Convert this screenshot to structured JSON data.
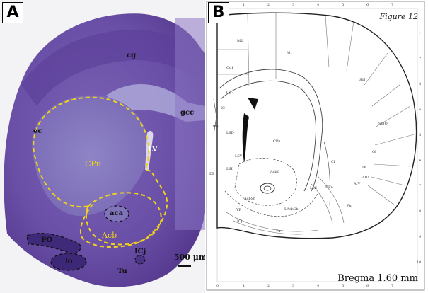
{
  "panels": {
    "a": {
      "badge": "A",
      "labels": {
        "cg": "cg",
        "ec": "ec",
        "gcc": "gcc",
        "lv": "LV",
        "cpu": "CPu",
        "aca": "aca",
        "acb": "Acb",
        "po": "PO",
        "lo": "lo",
        "icj": "ICj",
        "tu": "Tu"
      },
      "scale_label": "500 μm",
      "colors": {
        "stain": "#5c3d9a",
        "outline": "#f1d21b"
      }
    },
    "b": {
      "badge": "B",
      "figure_title": "Figure 12",
      "bregma": "Bregma 1.60 mm",
      "labels": {
        "m2": "M2",
        "m1": "M1",
        "cg1": "Cg1",
        "cg2": "Cg2",
        "s1j": "S1J",
        "s1jo": "S1JO",
        "ic": "IC",
        "gcc": "gcc",
        "lsd": "LSD",
        "lsi": "LSI",
        "lsv": "LSV",
        "cpu": "CPu",
        "cl": "Cl",
        "gi": "GI",
        "di": "DI",
        "aid": "AID",
        "aiv": "AIV",
        "den": "DEn",
        "pir": "Pir",
        "acbc": "AcbC",
        "acbsh": "AcbSh",
        "lacbsh": "LAcbSh",
        "vp": "VP",
        "tu": "Tu",
        "icj": "ICj",
        "lss": "LSS",
        "dp": "DP"
      },
      "top_ticks": [
        "1",
        "2",
        "3",
        "4",
        "5",
        "6",
        "7"
      ],
      "bottom_ticks": [
        "0",
        "1",
        "2",
        "3",
        "4",
        "5",
        "6",
        "7"
      ],
      "side_ticks": [
        "1",
        "2",
        "3",
        "4",
        "5",
        "6",
        "7",
        "8",
        "9",
        "10"
      ]
    }
  }
}
